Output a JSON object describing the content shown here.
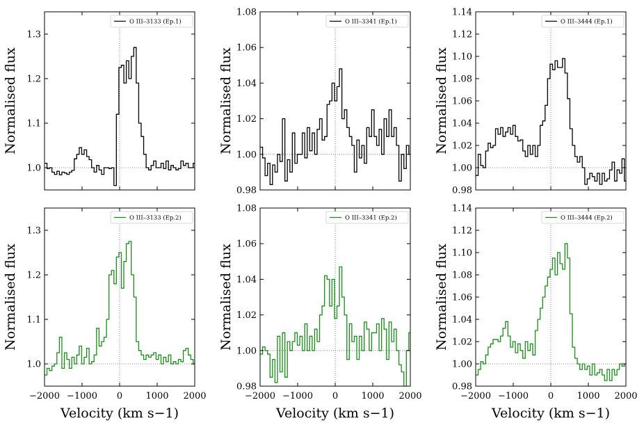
{
  "chart_data": [
    {
      "type": "line",
      "step": true,
      "color": "#000000",
      "legend": "O III–3133 (Ep.1)",
      "xlabel": "",
      "ylabel": "Normalised flux",
      "xlim": [
        -2000,
        2000
      ],
      "ylim": [
        0.95,
        1.35
      ],
      "yticks": [
        "1.0",
        "1.1",
        "1.2",
        "1.3"
      ],
      "ytick_values": [
        1.0,
        1.1,
        1.2,
        1.3
      ],
      "xticks": [],
      "xtick_values": [],
      "reference_line": 1.0,
      "zero_line": 0,
      "x0": -2000,
      "dx": 66,
      "values": [
        1.01,
        0.998,
        1.0,
        0.99,
        0.985,
        0.992,
        0.984,
        0.99,
        0.988,
        0.985,
        0.99,
        0.994,
        1.02,
        1.03,
        1.045,
        1.03,
        1.04,
        1.025,
        1.018,
        1.0,
        0.99,
        1.005,
        0.995,
        0.985,
        1.0,
        1.0,
        0.998,
        1.0,
        0.96,
        1.12,
        1.225,
        1.23,
        1.19,
        1.24,
        1.2,
        1.25,
        1.27,
        1.19,
        1.1,
        1.07,
        1.03,
        1.0,
        0.995,
        1.005,
        1.015,
        1.0,
        1.0,
        1.01,
        0.998,
        1.015,
        0.995,
        1.005,
        1.0,
        0.995,
        0.998,
        1.015,
        1.005,
        1.01,
        1.0,
        1.0,
        1.01
      ]
    },
    {
      "type": "line",
      "step": true,
      "color": "#000000",
      "legend": "O III–3341 (Ep.1)",
      "xlabel": "",
      "ylabel": "Normalised flux",
      "xlim": [
        -2000,
        2000
      ],
      "ylim": [
        0.98,
        1.08
      ],
      "yticks": [
        "0.98",
        "1.00",
        "1.02",
        "1.04",
        "1.06",
        "1.08"
      ],
      "ytick_values": [
        0.98,
        1.0,
        1.02,
        1.04,
        1.06,
        1.08
      ],
      "xticks": [],
      "xtick_values": [],
      "reference_line": 1.0,
      "zero_line": 0,
      "x0": -2000,
      "dx": 66,
      "values": [
        1.004,
        0.998,
        0.988,
        0.995,
        0.983,
        0.994,
        0.99,
        1.0,
        0.996,
        1.02,
        0.985,
        0.997,
        0.99,
        1.012,
        0.995,
        1.0,
        1.0,
        1.012,
        0.998,
        1.015,
        1.002,
        1.012,
        1.0,
        1.014,
        1.02,
        1.008,
        1.01,
        1.028,
        1.03,
        1.04,
        1.03,
        1.038,
        1.048,
        1.02,
        1.025,
        1.015,
        1.01,
        1.005,
        0.99,
        1.008,
        0.998,
        1.005,
        0.995,
        1.015,
        1.01,
        1.025,
        1.01,
        1.005,
        1.014,
        1.0,
        1.02,
        1.01,
        1.025,
        1.01,
        1.015,
        1.005,
        0.985,
        1.0,
        0.992,
        1.005,
        1.0
      ]
    },
    {
      "type": "line",
      "step": true,
      "color": "#000000",
      "legend": "O III–3444 (Ep.1)",
      "xlabel": "",
      "ylabel": "Normalised flux",
      "xlim": [
        -2000,
        2000
      ],
      "ylim": [
        0.98,
        1.14
      ],
      "yticks": [
        "0.98",
        "1.00",
        "1.02",
        "1.04",
        "1.06",
        "1.08",
        "1.10",
        "1.12",
        "1.14"
      ],
      "ytick_values": [
        0.98,
        1.0,
        1.02,
        1.04,
        1.06,
        1.08,
        1.1,
        1.12,
        1.14
      ],
      "xticks": [],
      "xtick_values": [],
      "reference_line": 1.0,
      "zero_line": 0,
      "x0": -2000,
      "dx": 66,
      "values": [
        0.993,
        1.012,
        1.002,
        1.0,
        1.015,
        1.022,
        1.018,
        1.02,
        1.035,
        1.03,
        1.036,
        1.028,
        1.032,
        1.036,
        1.03,
        1.038,
        1.028,
        1.024,
        1.025,
        1.015,
        1.01,
        1.02,
        1.012,
        1.02,
        1.01,
        1.02,
        1.038,
        1.042,
        1.056,
        1.08,
        1.093,
        1.088,
        1.096,
        1.09,
        1.09,
        1.098,
        1.085,
        1.062,
        1.035,
        1.02,
        1.01,
        1.005,
        1.01,
        1.0,
        0.985,
        0.99,
        0.995,
        0.992,
        0.988,
        0.995,
        0.985,
        0.995,
        0.988,
        0.99,
        0.998,
        1.005,
        0.988,
        0.998,
        0.995,
        1.008,
        0.988
      ]
    },
    {
      "type": "line",
      "step": true,
      "color": "#1a8a1a",
      "legend": "O III–3133 (Ep.2)",
      "xlabel": "Velocity (km s−1)",
      "ylabel": "Normalised flux",
      "xlim": [
        -2000,
        2000
      ],
      "ylim": [
        0.95,
        1.35
      ],
      "yticks": [
        "1.0",
        "1.1",
        "1.2",
        "1.3"
      ],
      "ytick_values": [
        1.0,
        1.1,
        1.2,
        1.3
      ],
      "xticks": [
        "−2000",
        "−1000",
        "0",
        "1000",
        "2000"
      ],
      "xtick_values": [
        -2000,
        -1000,
        0,
        1000,
        2000
      ],
      "reference_line": 1.0,
      "zero_line": 0,
      "x0": -2000,
      "dx": 66,
      "values": [
        0.975,
        0.99,
        0.985,
        0.995,
        1.0,
        1.025,
        1.06,
        0.99,
        1.025,
        1.01,
        0.99,
        1.015,
        1.0,
        1.02,
        1.04,
        1.0,
        1.015,
        1.035,
        1.0,
        1.005,
        1.02,
        1.08,
        1.04,
        1.05,
        1.06,
        1.1,
        1.2,
        1.21,
        1.18,
        1.24,
        1.25,
        1.17,
        1.23,
        1.27,
        1.275,
        1.2,
        1.15,
        1.05,
        1.03,
        1.02,
        1.01,
        1.02,
        1.015,
        1.02,
        1.025,
        1.01,
        1.02,
        1.0,
        1.015,
        1.005,
        1.02,
        1.0,
        1.005,
        1.0,
        1.01,
        1.005,
        1.03,
        1.035,
        1.02,
        1.01,
        1.0
      ]
    },
    {
      "type": "line",
      "step": true,
      "color": "#1a8a1a",
      "legend": "O III–3341 (Ep.2)",
      "xlabel": "Velocity (km s−1)",
      "ylabel": "Normalised flux",
      "xlim": [
        -2000,
        2000
      ],
      "ylim": [
        0.98,
        1.08
      ],
      "yticks": [
        "0.98",
        "1.00",
        "1.02",
        "1.04",
        "1.06",
        "1.08"
      ],
      "ytick_values": [
        0.98,
        1.0,
        1.02,
        1.04,
        1.06,
        1.08
      ],
      "xticks": [
        "−2000",
        "−1000",
        "0",
        "1000",
        "2000"
      ],
      "xtick_values": [
        -2000,
        -1000,
        0,
        1000,
        2000
      ],
      "reference_line": 1.0,
      "zero_line": 0,
      "x0": -2000,
      "dx": 66,
      "values": [
        0.998,
        1.002,
        1.0,
        0.998,
        0.985,
        0.995,
        0.982,
        1.008,
        0.988,
        1.01,
        0.985,
        1.005,
        1.0,
        1.005,
        1.01,
        1.003,
        1.008,
        1.0,
        1.015,
        1.0,
        1.008,
        1.0,
        1.012,
        1.005,
        1.02,
        1.025,
        1.042,
        1.04,
        1.025,
        1.04,
        1.018,
        1.025,
        1.047,
        1.03,
        1.02,
        0.995,
        1.015,
        1.005,
        1.008,
        0.995,
        1.008,
        1.0,
        1.016,
        1.012,
        1.0,
        1.01,
        1.01,
        1.015,
        1.0,
        1.018,
        1.012,
        0.995,
        1.016,
        1.005,
        1.012,
        1.0,
        0.992,
        0.988,
        0.98,
        1.0,
        1.01
      ]
    },
    {
      "type": "line",
      "step": true,
      "color": "#1a8a1a",
      "legend": "O III–3444 (Ep.2)",
      "xlabel": "Velocity (km s−1)",
      "ylabel": "Normalised flux",
      "xlim": [
        -2000,
        2000
      ],
      "ylim": [
        0.98,
        1.14
      ],
      "yticks": [
        "0.98",
        "1.00",
        "1.02",
        "1.04",
        "1.06",
        "1.08",
        "1.10",
        "1.12",
        "1.14"
      ],
      "ytick_values": [
        0.98,
        1.0,
        1.02,
        1.04,
        1.06,
        1.08,
        1.1,
        1.12,
        1.14
      ],
      "xticks": [
        "−2000",
        "−1000",
        "0",
        "1000",
        "2000"
      ],
      "xtick_values": [
        -2000,
        -1000,
        0,
        1000,
        2000
      ],
      "reference_line": 1.0,
      "zero_line": 0,
      "x0": -2000,
      "dx": 66,
      "values": [
        0.99,
        0.995,
        1.002,
        1.0,
        1.008,
        1.015,
        1.018,
        1.022,
        1.022,
        1.02,
        1.025,
        1.032,
        1.038,
        1.025,
        1.015,
        1.02,
        1.01,
        1.018,
        1.012,
        1.005,
        1.02,
        1.012,
        1.018,
        1.008,
        1.03,
        1.04,
        1.05,
        1.06,
        1.07,
        1.078,
        1.085,
        1.095,
        1.08,
        1.1,
        1.09,
        1.085,
        1.108,
        1.095,
        1.045,
        1.015,
        1.005,
        1.0,
        0.995,
        1.0,
        0.995,
        0.998,
        0.99,
        1.0,
        0.99,
        0.992,
        0.995,
        0.99,
        0.985,
        0.995,
        0.985,
        0.995,
        0.99,
        0.995,
        1.0,
        0.998,
        1.0
      ]
    }
  ]
}
